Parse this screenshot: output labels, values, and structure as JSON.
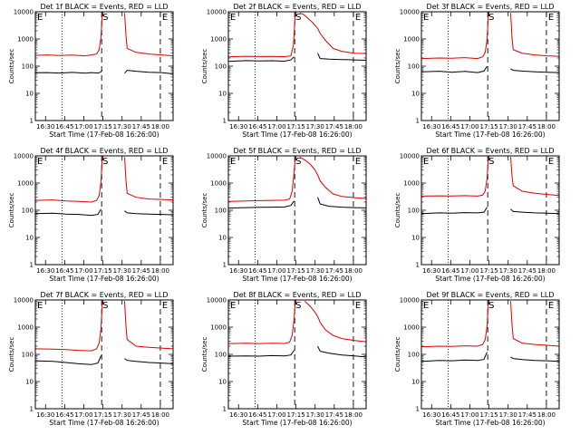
{
  "figure": {
    "ylabel": "Counts/sec",
    "xlabel": "Start Time (17-Feb-08 16:26:00)",
    "xticks": [
      "16:30",
      "16:45",
      "17:00",
      "17:15",
      "17:30",
      "17:45",
      "18:00"
    ],
    "yticks": [
      "1",
      "10",
      "100",
      "1000",
      "10000"
    ],
    "markers": {
      "start": "S",
      "end": "E"
    },
    "colors": {
      "events": "#000000",
      "lld": "#e00000",
      "axes": "#000000"
    }
  },
  "chart_data": [
    {
      "type": "line",
      "title": "Det 1f BLACK = Events, RED = LLD",
      "xlabel": "Start Time (17-Feb-08 16:26:00)",
      "ylabel": "Counts/sec",
      "y_scale": "log",
      "ylim": [
        1,
        10000
      ],
      "xlim_minutes": [
        -4,
        104
      ],
      "dotted_lines": [
        17,
        104
      ],
      "dashed_lines": [
        48,
        94
      ],
      "start_marker_x": 48,
      "end_marker_x": 94,
      "gap": [
        48.5,
        66
      ],
      "series": [
        {
          "name": "Events",
          "color": "#000000",
          "x": [
            -4,
            5,
            15,
            25,
            35,
            40,
            45,
            47,
            48.5,
            66,
            68,
            75,
            85,
            95,
            104
          ],
          "values": [
            57,
            58,
            56,
            59,
            55,
            58,
            56,
            60,
            70,
            55,
            70,
            65,
            60,
            58,
            52
          ]
        },
        {
          "name": "LLD",
          "color": "#e00000",
          "x": [
            -4,
            5,
            15,
            25,
            35,
            40,
            44,
            46,
            47.5,
            48.5,
            66,
            67,
            68,
            75,
            85,
            95,
            104
          ],
          "values": [
            250,
            260,
            245,
            255,
            240,
            260,
            280,
            400,
            1200,
            9000,
            9000,
            1500,
            450,
            320,
            280,
            260,
            240
          ]
        }
      ]
    },
    {
      "type": "line",
      "title": "Det 2f BLACK = Events, RED = LLD",
      "xlabel": "Start Time (17-Feb-08 16:26:00)",
      "ylabel": "Counts/sec",
      "y_scale": "log",
      "ylim": [
        1,
        10000
      ],
      "xlim_minutes": [
        -4,
        104
      ],
      "dotted_lines": [
        17,
        104
      ],
      "dashed_lines": [
        48,
        94
      ],
      "start_marker_x": 48,
      "end_marker_x": 94,
      "gap": [
        48.5,
        66
      ],
      "series": [
        {
          "name": "Events",
          "color": "#000000",
          "x": [
            -4,
            10,
            20,
            30,
            40,
            45,
            47.5,
            66,
            68,
            75,
            85,
            95,
            104
          ],
          "values": [
            150,
            160,
            155,
            158,
            152,
            170,
            220,
            300,
            190,
            180,
            175,
            170,
            165
          ]
        },
        {
          "name": "LLD",
          "color": "#e00000",
          "x": [
            -4,
            10,
            20,
            30,
            40,
            45,
            47,
            48.5,
            52,
            55,
            58,
            62,
            66,
            68,
            72,
            78,
            85,
            95,
            104
          ],
          "values": [
            220,
            230,
            225,
            228,
            222,
            240,
            600,
            9000,
            9000,
            8000,
            6000,
            4000,
            2500,
            1600,
            900,
            450,
            350,
            300,
            290
          ]
        }
      ]
    },
    {
      "type": "line",
      "title": "Det 3f BLACK = Events, RED = LLD",
      "xlabel": "Start Time (17-Feb-08 16:26:00)",
      "ylabel": "Counts/sec",
      "y_scale": "log",
      "ylim": [
        1,
        10000
      ],
      "xlim_minutes": [
        -4,
        104
      ],
      "dotted_lines": [
        17,
        104
      ],
      "dashed_lines": [
        48,
        94
      ],
      "start_marker_x": 48,
      "end_marker_x": 94,
      "gap": [
        48.5,
        66
      ],
      "series": [
        {
          "name": "Events",
          "color": "#000000",
          "x": [
            -4,
            10,
            20,
            30,
            40,
            45,
            47.5,
            66,
            68,
            75,
            85,
            95,
            104
          ],
          "values": [
            62,
            65,
            60,
            64,
            58,
            66,
            100,
            80,
            70,
            66,
            62,
            60,
            58
          ]
        },
        {
          "name": "LLD",
          "color": "#e00000",
          "x": [
            -4,
            10,
            20,
            30,
            40,
            44,
            46,
            47.5,
            48.5,
            66,
            67,
            68,
            75,
            85,
            95,
            104
          ],
          "values": [
            190,
            200,
            195,
            205,
            190,
            220,
            320,
            1000,
            9000,
            9000,
            1200,
            400,
            300,
            260,
            240,
            230
          ]
        }
      ]
    },
    {
      "type": "line",
      "title": "Det 4f BLACK = Events, RED = LLD",
      "xlabel": "Start Time (17-Feb-08 16:26:00)",
      "ylabel": "Counts/sec",
      "y_scale": "log",
      "ylim": [
        1,
        10000
      ],
      "xlim_minutes": [
        -4,
        104
      ],
      "dotted_lines": [
        17,
        104
      ],
      "dashed_lines": [
        48,
        94
      ],
      "start_marker_x": 48,
      "end_marker_x": 94,
      "gap": [
        48.5,
        66
      ],
      "series": [
        {
          "name": "Events",
          "color": "#000000",
          "x": [
            -4,
            10,
            20,
            30,
            40,
            45,
            47.5,
            66,
            68,
            75,
            85,
            95,
            104
          ],
          "values": [
            75,
            78,
            72,
            70,
            65,
            70,
            110,
            95,
            80,
            75,
            72,
            70,
            68
          ]
        },
        {
          "name": "LLD",
          "color": "#e00000",
          "x": [
            -4,
            10,
            20,
            30,
            40,
            44,
            46,
            47.5,
            48.5,
            66,
            67,
            68,
            75,
            85,
            95,
            104
          ],
          "values": [
            230,
            240,
            220,
            210,
            200,
            230,
            350,
            1200,
            9000,
            9000,
            1400,
            420,
            300,
            260,
            250,
            240
          ]
        }
      ]
    },
    {
      "type": "line",
      "title": "Det 5f BLACK = Events, RED = LLD",
      "xlabel": "Start Time (17-Feb-08 16:26:00)",
      "ylabel": "Counts/sec",
      "y_scale": "log",
      "ylim": [
        1,
        10000
      ],
      "xlim_minutes": [
        -4,
        104
      ],
      "dotted_lines": [
        17,
        104
      ],
      "dashed_lines": [
        48,
        94
      ],
      "start_marker_x": 48,
      "end_marker_x": 94,
      "gap": [
        48.5,
        66
      ],
      "series": [
        {
          "name": "Events",
          "color": "#000000",
          "x": [
            -4,
            10,
            20,
            30,
            40,
            45,
            47.5,
            66,
            68,
            75,
            85,
            95,
            104
          ],
          "values": [
            120,
            125,
            128,
            130,
            132,
            150,
            220,
            300,
            170,
            140,
            130,
            125,
            122
          ]
        },
        {
          "name": "LLD",
          "color": "#e00000",
          "x": [
            -4,
            10,
            20,
            30,
            40,
            44,
            46,
            47.5,
            48.5,
            52,
            56,
            60,
            64,
            66,
            68,
            72,
            78,
            85,
            95,
            104
          ],
          "values": [
            210,
            220,
            225,
            230,
            235,
            260,
            500,
            2500,
            9000,
            9000,
            7000,
            5000,
            3000,
            2000,
            1200,
            700,
            400,
            320,
            290,
            270
          ]
        }
      ]
    },
    {
      "type": "line",
      "title": "Det 6f BLACK = Events, RED = LLD",
      "xlabel": "Start Time (17-Feb-08 16:26:00)",
      "ylabel": "Counts/sec",
      "y_scale": "log",
      "ylim": [
        1,
        10000
      ],
      "xlim_minutes": [
        -4,
        104
      ],
      "dotted_lines": [
        17,
        104
      ],
      "dashed_lines": [
        48,
        94
      ],
      "start_marker_x": 48,
      "end_marker_x": 94,
      "gap": [
        48.5,
        66
      ],
      "series": [
        {
          "name": "Events",
          "color": "#000000",
          "x": [
            -4,
            10,
            20,
            30,
            40,
            45,
            47.5,
            66,
            68,
            75,
            85,
            95,
            104
          ],
          "values": [
            75,
            80,
            78,
            82,
            80,
            85,
            130,
            110,
            90,
            85,
            80,
            78,
            75
          ]
        },
        {
          "name": "LLD",
          "color": "#e00000",
          "x": [
            -4,
            10,
            20,
            30,
            40,
            44,
            46,
            47.5,
            48.5,
            66,
            67,
            68,
            75,
            85,
            95,
            104
          ],
          "values": [
            330,
            340,
            335,
            345,
            330,
            360,
            500,
            1500,
            9000,
            9000,
            2000,
            800,
            500,
            420,
            380,
            350
          ]
        }
      ]
    },
    {
      "type": "line",
      "title": "Det 7f BLACK = Events, RED = LLD",
      "xlabel": "Start Time (17-Feb-08 16:26:00)",
      "ylabel": "Counts/sec",
      "y_scale": "log",
      "ylim": [
        1,
        10000
      ],
      "xlim_minutes": [
        -4,
        104
      ],
      "dotted_lines": [
        17,
        104
      ],
      "dashed_lines": [
        48,
        94
      ],
      "start_marker_x": 48,
      "end_marker_x": 94,
      "gap": [
        48.5,
        66
      ],
      "series": [
        {
          "name": "Events",
          "color": "#000000",
          "x": [
            -4,
            10,
            20,
            30,
            40,
            45,
            47.5,
            66,
            68,
            75,
            85,
            95,
            104
          ],
          "values": [
            58,
            55,
            50,
            45,
            42,
            48,
            90,
            70,
            60,
            55,
            50,
            48,
            45
          ]
        },
        {
          "name": "LLD",
          "color": "#e00000",
          "x": [
            -4,
            10,
            20,
            30,
            40,
            44,
            46,
            47.5,
            48.5,
            66,
            67,
            68,
            75,
            85,
            95,
            104
          ],
          "values": [
            160,
            155,
            150,
            140,
            135,
            160,
            260,
            900,
            9000,
            9000,
            1200,
            350,
            200,
            180,
            170,
            160
          ]
        }
      ]
    },
    {
      "type": "line",
      "title": "Det 8f BLACK = Events, RED = LLD",
      "xlabel": "Start Time (17-Feb-08 16:26:00)",
      "ylabel": "Counts/sec",
      "y_scale": "log",
      "ylim": [
        1,
        10000
      ],
      "xlim_minutes": [
        -4,
        104
      ],
      "dotted_lines": [
        17,
        104
      ],
      "dashed_lines": [
        48,
        94
      ],
      "start_marker_x": 48,
      "end_marker_x": 94,
      "gap": [
        48.5,
        66
      ],
      "series": [
        {
          "name": "Events",
          "color": "#000000",
          "x": [
            -4,
            10,
            20,
            30,
            40,
            45,
            47.5,
            66,
            68,
            75,
            85,
            95,
            104
          ],
          "values": [
            85,
            88,
            86,
            90,
            87,
            95,
            140,
            200,
            130,
            110,
            95,
            88,
            80
          ]
        },
        {
          "name": "LLD",
          "color": "#e00000",
          "x": [
            -4,
            10,
            20,
            30,
            40,
            44,
            46,
            47.5,
            48.5,
            56,
            60,
            64,
            66,
            68,
            72,
            78,
            85,
            95,
            104
          ],
          "values": [
            250,
            255,
            250,
            258,
            252,
            280,
            500,
            2000,
            9000,
            9000,
            6000,
            3500,
            2500,
            1500,
            800,
            500,
            380,
            320,
            290
          ]
        }
      ]
    },
    {
      "type": "line",
      "title": "Det 9f BLACK = Events, RED = LLD",
      "xlabel": "Start Time (17-Feb-08 16:26:00)",
      "ylabel": "Counts/sec",
      "y_scale": "log",
      "ylim": [
        1,
        10000
      ],
      "xlim_minutes": [
        -4,
        104
      ],
      "dotted_lines": [
        17,
        104
      ],
      "dashed_lines": [
        48,
        94
      ],
      "start_marker_x": 48,
      "end_marker_x": 94,
      "gap": [
        48.5,
        66
      ],
      "series": [
        {
          "name": "Events",
          "color": "#000000",
          "x": [
            -4,
            10,
            20,
            30,
            40,
            45,
            47.5,
            66,
            68,
            75,
            85,
            95,
            104
          ],
          "values": [
            55,
            60,
            58,
            62,
            60,
            65,
            120,
            80,
            70,
            64,
            60,
            58,
            55
          ]
        },
        {
          "name": "LLD",
          "color": "#e00000",
          "x": [
            -4,
            10,
            20,
            30,
            40,
            44,
            46,
            47.5,
            48.5,
            66,
            67,
            68,
            75,
            85,
            95,
            104
          ],
          "values": [
            190,
            200,
            195,
            205,
            200,
            230,
            350,
            1100,
            9000,
            9000,
            1400,
            380,
            260,
            230,
            215,
            200
          ]
        }
      ]
    }
  ]
}
